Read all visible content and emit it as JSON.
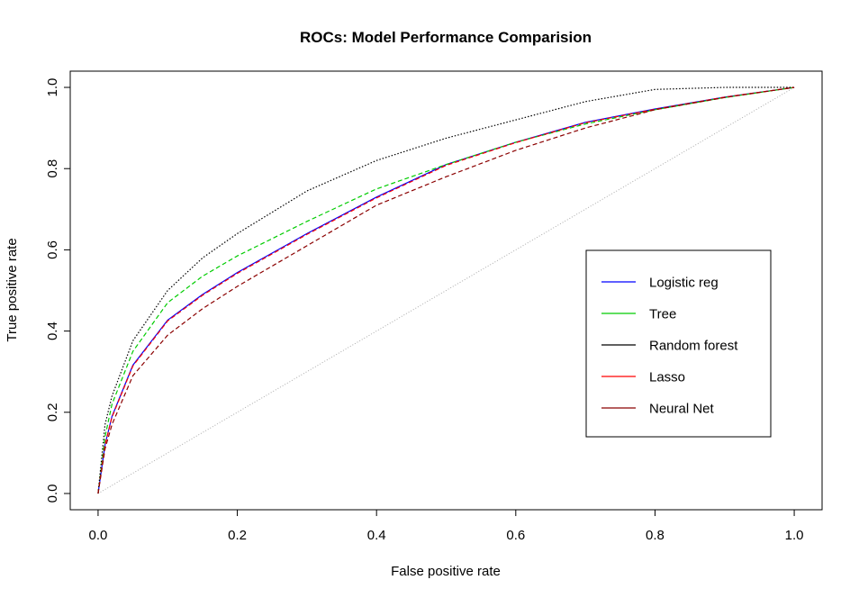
{
  "chart_data": {
    "type": "line",
    "title": "ROCs: Model Performance Comparision",
    "x_label": "False positive rate",
    "y_label": "True positive rate",
    "x": [
      0,
      0.01,
      0.02,
      0.05,
      0.1,
      0.15,
      0.2,
      0.3,
      0.4,
      0.5,
      0.6,
      0.7,
      0.8,
      0.9,
      1
    ],
    "series": [
      {
        "name": "Logistic reg",
        "color": "#0000ff",
        "dash": "solid",
        "values": [
          0,
          0.12,
          0.19,
          0.316,
          0.427,
          0.49,
          0.544,
          0.64,
          0.73,
          0.81,
          0.865,
          0.914,
          0.947,
          0.976,
          1
        ]
      },
      {
        "name": "Tree",
        "color": "#00cc00",
        "dash": "dashed",
        "values": [
          0,
          0.14,
          0.22,
          0.35,
          0.47,
          0.535,
          0.585,
          0.67,
          0.75,
          0.81,
          0.865,
          0.91,
          0.945,
          0.975,
          1
        ]
      },
      {
        "name": "Random forest",
        "color": "#000000",
        "dash": "dotted",
        "values": [
          0,
          0.17,
          0.24,
          0.376,
          0.5,
          0.58,
          0.64,
          0.745,
          0.82,
          0.875,
          0.92,
          0.965,
          0.995,
          1,
          1
        ]
      },
      {
        "name": "Lasso",
        "color": "#ff0000",
        "dash": "dashed",
        "values": [
          0,
          0.12,
          0.188,
          0.314,
          0.425,
          0.488,
          0.542,
          0.638,
          0.728,
          0.808,
          0.864,
          0.913,
          0.946,
          0.976,
          1
        ]
      },
      {
        "name": "Neural Net",
        "color": "#8b0000",
        "dash": "dashed",
        "values": [
          0,
          0.11,
          0.17,
          0.29,
          0.39,
          0.455,
          0.51,
          0.61,
          0.71,
          0.78,
          0.845,
          0.9,
          0.945,
          0.975,
          1
        ]
      }
    ],
    "xlim": [
      -0.04,
      1.04
    ],
    "ylim": [
      -0.04,
      1.04
    ],
    "xticks": [
      {
        "value": 0,
        "label": "0.0"
      },
      0.2,
      0.4,
      0.6,
      0.8,
      {
        "value": 1,
        "label": "1.0"
      }
    ],
    "yticks": [
      {
        "value": 0,
        "label": "0.0"
      },
      0.2,
      0.4,
      0.6,
      0.8,
      {
        "value": 1,
        "label": "1.0"
      }
    ],
    "legend": "right",
    "grid": false
  }
}
